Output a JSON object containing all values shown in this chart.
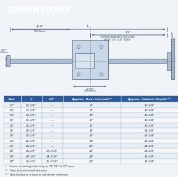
{
  "title": "DIMENSIONS",
  "title_bg": "#1a4a7a",
  "title_color": "#ffffff",
  "table_headers": [
    "Size",
    "L",
    "1/2\"",
    "Approx. Door Conceal**",
    "Approx. Cabinet Depth***"
  ],
  "table_rows": [
    [
      "12\"",
      "12-1/8\"",
      "—",
      "8\"",
      "12-3/8\""
    ],
    [
      "13\"",
      "13-1/8\"",
      "—",
      "9\"",
      "13-3/8\""
    ],
    [
      "14\"",
      "14-1/8\"",
      "—",
      "10\"",
      "14-3/8\""
    ],
    [
      "15\"",
      "15-1/8\"",
      "—",
      "11\"",
      "15-3/8\""
    ],
    [
      "16\"",
      "16-1/8\"",
      "—",
      "12\"",
      "16-3/8\""
    ],
    [
      "18\"",
      "18-1/8\"",
      "—",
      "14\"",
      "18-3/8\""
    ],
    [
      "20\"",
      "20-1/8\"",
      "—",
      "16\"",
      "20-3/8\""
    ],
    [
      "22\"",
      "22-1/8\"",
      "—",
      "18\"",
      "22-3/8\""
    ],
    [
      "24\"",
      "24-1/8\"",
      "—",
      "20\"",
      "24-3/8\""
    ],
    [
      "26\"",
      "26-1/8\"",
      "13-1/16\"",
      "22\"",
      "26-3/8\""
    ],
    [
      "28\"",
      "28-1/8\"",
      "14-1/16\"",
      "24\"",
      "28-3/8\""
    ],
    [
      "30\"",
      "30-1/8\"",
      "15-1/16\"",
      "26\"",
      "30-3/8\""
    ]
  ],
  "footnotes": [
    "*    Center mounting holes only on 26\",28\", & 30\" sizes",
    "**   Door fully retracted into case",
    "***  Add thickness of door to determine minimum"
  ],
  "header_bg": "#2a5a9a",
  "header_color": "#ffffff",
  "row_colors": [
    "#e8eef5",
    "#f5f7fa"
  ],
  "bg_color": "#f0f4f8",
  "diagram_bg": "#dde6f0"
}
